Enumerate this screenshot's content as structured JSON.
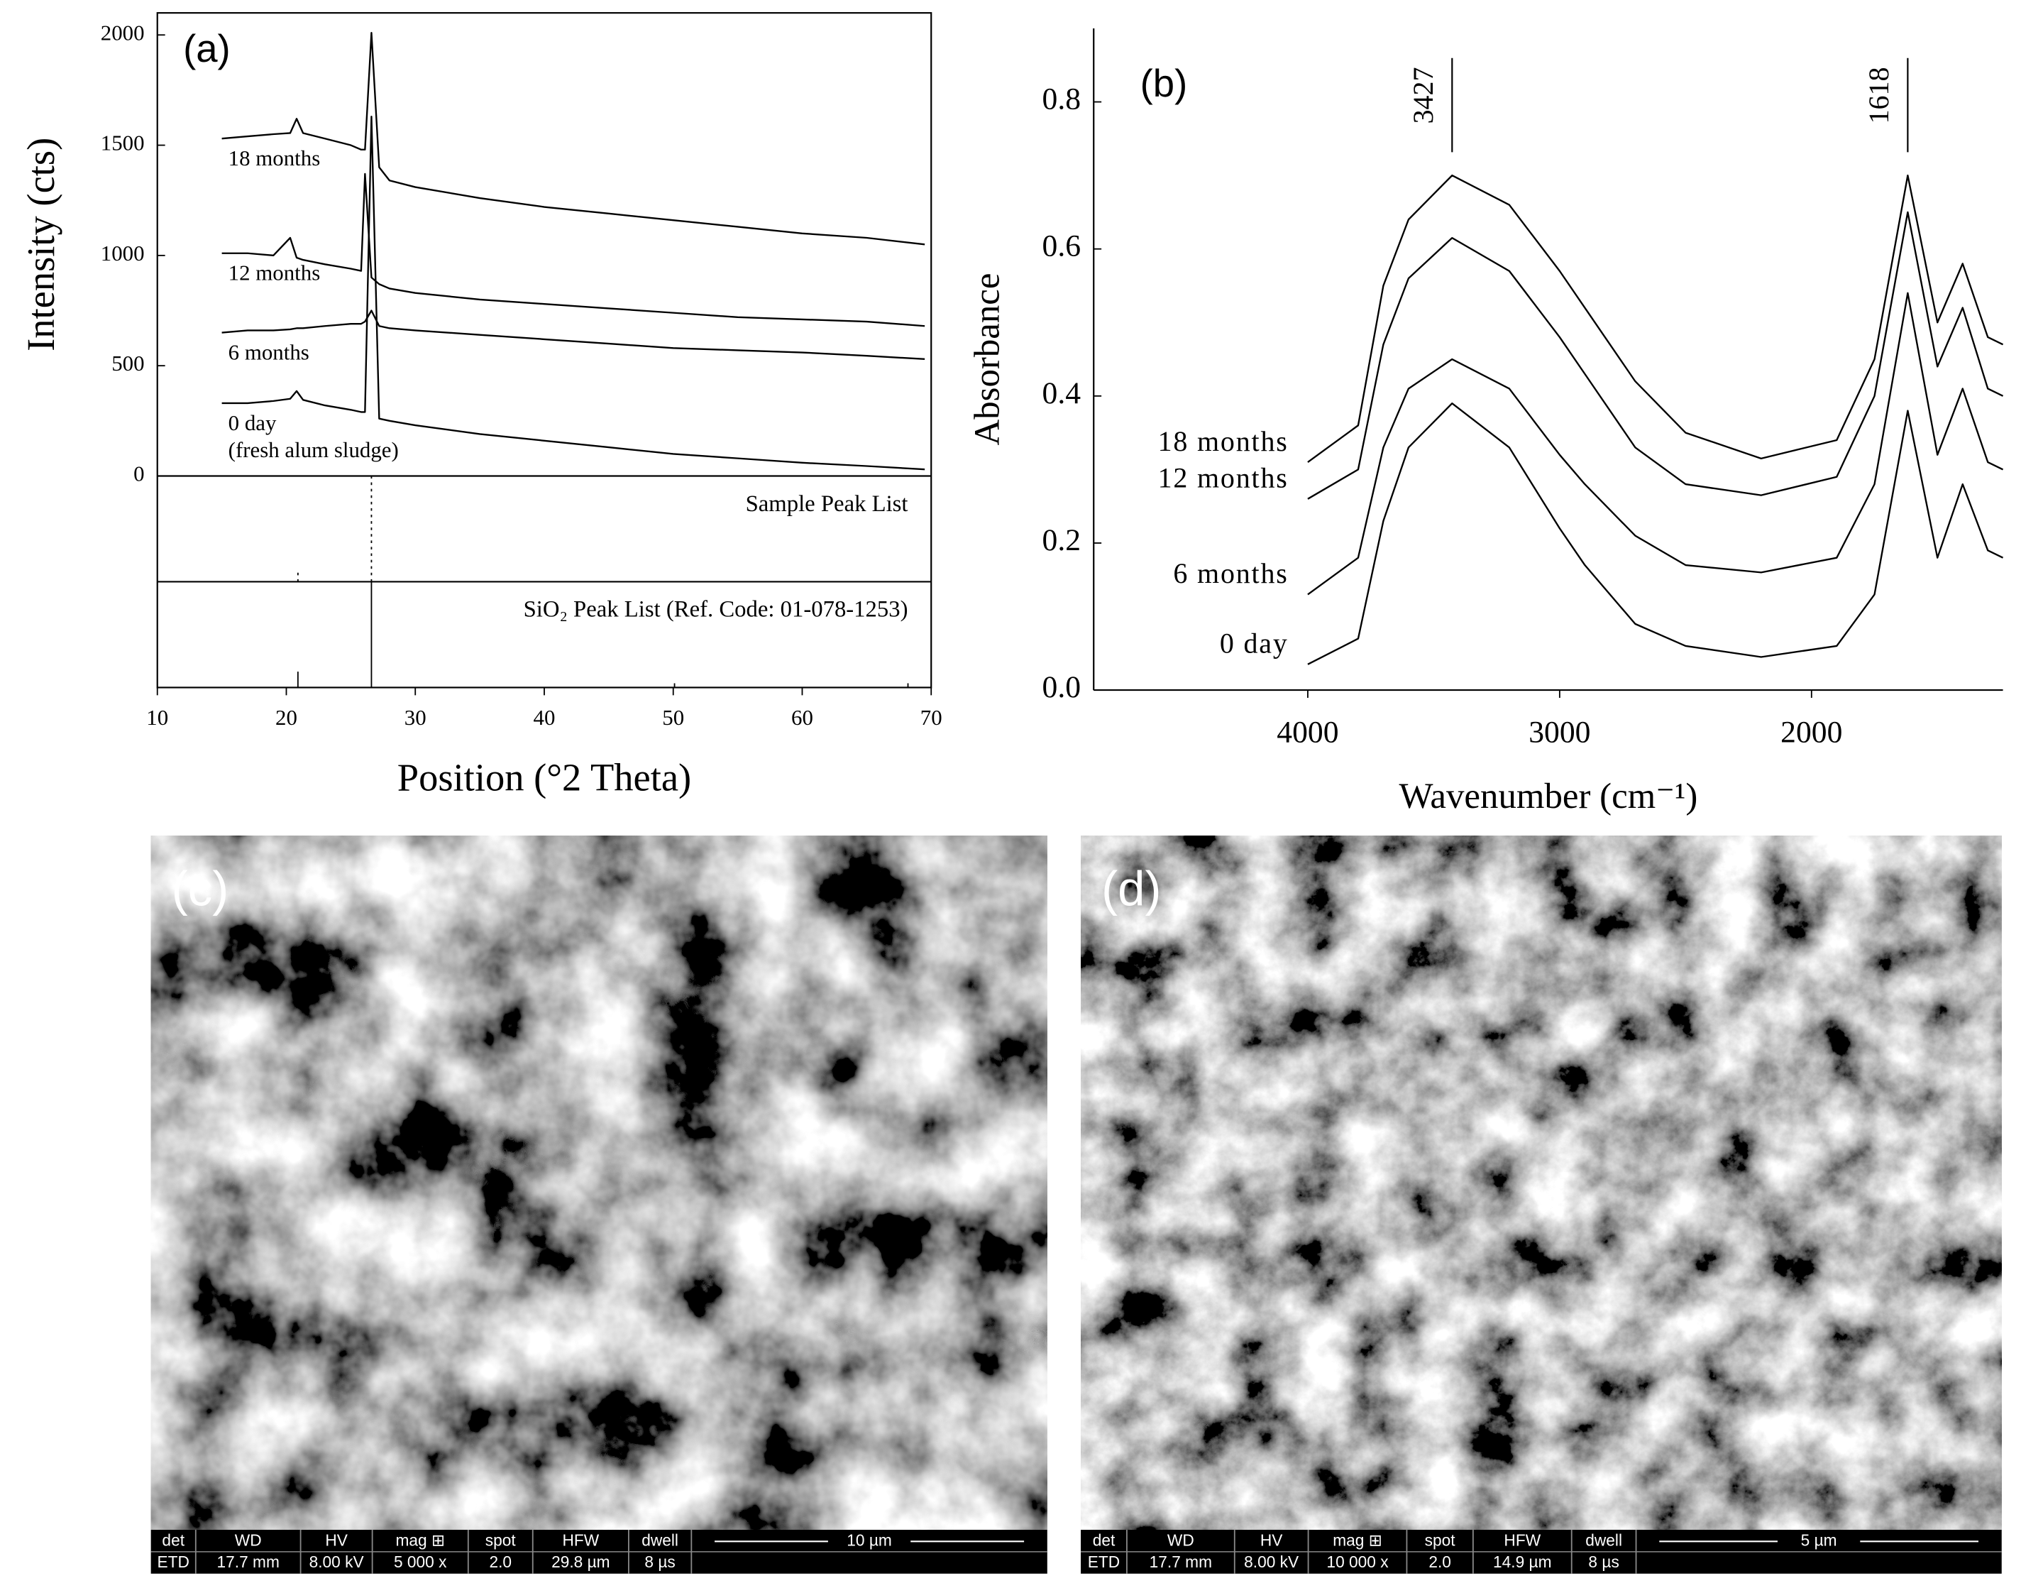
{
  "chart_data": [
    {
      "type": "line",
      "panel_label": "(a)",
      "x_label": "Position (°2 Theta)",
      "y_label": "Intensity (cts)",
      "x": [
        15,
        17,
        19,
        20.3,
        20.8,
        21.3,
        23,
        25,
        25.8,
        26.1,
        26.6,
        27.2,
        28,
        30,
        35,
        40,
        45,
        50,
        55,
        60,
        65,
        69.5
      ],
      "xlim": [
        10,
        70
      ],
      "xticks": [
        10,
        20,
        30,
        40,
        50,
        60,
        70
      ],
      "ylim": [
        0,
        2100
      ],
      "yticks": [
        0,
        500,
        1000,
        1500,
        2000
      ],
      "series": [
        {
          "name": "18 months",
          "color": "#000000",
          "values": [
            1530,
            1540,
            1550,
            1555,
            1620,
            1555,
            1530,
            1500,
            1480,
            1480,
            2010,
            1400,
            1340,
            1310,
            1260,
            1220,
            1190,
            1160,
            1130,
            1100,
            1080,
            1050
          ]
        },
        {
          "name": "12 months",
          "color": "#000000",
          "values": [
            1010,
            1010,
            1000,
            1080,
            990,
            980,
            960,
            940,
            930,
            1370,
            900,
            870,
            850,
            830,
            800,
            780,
            760,
            740,
            720,
            710,
            700,
            680
          ]
        },
        {
          "name": "6 months",
          "color": "#000000",
          "values": [
            650,
            660,
            660,
            665,
            670,
            670,
            680,
            690,
            690,
            700,
            750,
            680,
            670,
            660,
            640,
            620,
            600,
            580,
            570,
            560,
            545,
            530
          ]
        },
        {
          "name": "0 day",
          "note": "(fresh alum sludge)",
          "color": "#000000",
          "values": [
            330,
            330,
            340,
            350,
            385,
            345,
            320,
            300,
            290,
            290,
            1630,
            260,
            250,
            230,
            190,
            160,
            130,
            100,
            80,
            60,
            45,
            30
          ]
        }
      ],
      "peak_lists": [
        {
          "label": "Sample Peak List",
          "style": "dotted",
          "positions": [
            20.9,
            26.6
          ],
          "intensities": [
            12,
            100
          ]
        },
        {
          "label": "SiO₂ Peak List (Ref. Code: 01-078-1253)",
          "style": "solid",
          "positions": [
            20.9,
            26.6,
            50.1,
            68.2
          ],
          "intensities": [
            15,
            100,
            4,
            4
          ]
        }
      ]
    },
    {
      "type": "line",
      "panel_label": "(b)",
      "x_label": "Wavenumber (cm⁻¹)",
      "y_label": "Absorbance",
      "x": [
        4000,
        3800,
        3700,
        3600,
        3427,
        3200,
        3000,
        2900,
        2700,
        2500,
        2200,
        1900,
        1750,
        1618,
        1500,
        1400,
        1300,
        1240
      ],
      "xlim": [
        4850,
        1240
      ],
      "xticks": [
        4000,
        3000,
        2000
      ],
      "ylim": [
        0,
        0.9
      ],
      "yticks": [
        {
          "value": 0,
          "label": "0.0"
        },
        0.2,
        0.4,
        0.6,
        0.8
      ],
      "peak_markers": [
        3427,
        1618
      ],
      "series": [
        {
          "name": "18 months",
          "color": "#000000",
          "values": [
            0.31,
            0.36,
            0.55,
            0.64,
            0.7,
            0.66,
            0.57,
            0.52,
            0.42,
            0.35,
            0.315,
            0.34,
            0.45,
            0.7,
            0.5,
            0.58,
            0.48,
            0.47
          ]
        },
        {
          "name": "12 months",
          "color": "#000000",
          "values": [
            0.26,
            0.3,
            0.47,
            0.56,
            0.615,
            0.57,
            0.48,
            0.43,
            0.33,
            0.28,
            0.265,
            0.29,
            0.4,
            0.65,
            0.44,
            0.52,
            0.41,
            0.4
          ]
        },
        {
          "name": "6 months",
          "color": "#000000",
          "values": [
            0.13,
            0.18,
            0.33,
            0.41,
            0.45,
            0.41,
            0.32,
            0.28,
            0.21,
            0.17,
            0.16,
            0.18,
            0.28,
            0.54,
            0.32,
            0.41,
            0.31,
            0.3
          ]
        },
        {
          "name": "0 day",
          "color": "#000000",
          "values": [
            0.035,
            0.07,
            0.23,
            0.33,
            0.39,
            0.33,
            0.22,
            0.17,
            0.09,
            0.06,
            0.045,
            0.06,
            0.13,
            0.38,
            0.18,
            0.28,
            0.19,
            0.18
          ]
        }
      ]
    }
  ],
  "images": [
    {
      "label": "(c)",
      "info_bar": {
        "headers": [
          "det",
          "WD",
          "HV",
          "mag ⊞",
          "spot",
          "HFW",
          "dwell"
        ],
        "values": [
          "ETD",
          "17.7 mm",
          "8.00 kV",
          "5 000 x",
          "2.0",
          "29.8 µm",
          "8 µs"
        ],
        "scale": "10 µm"
      }
    },
    {
      "label": "(d)",
      "info_bar": {
        "headers": [
          "det",
          "WD",
          "HV",
          "mag ⊞",
          "spot",
          "HFW",
          "dwell"
        ],
        "values": [
          "ETD",
          "17.7 mm",
          "8.00 kV",
          "10 000 x",
          "2.0",
          "14.9 µm",
          "8 µs"
        ],
        "scale": "5 µm"
      }
    }
  ]
}
